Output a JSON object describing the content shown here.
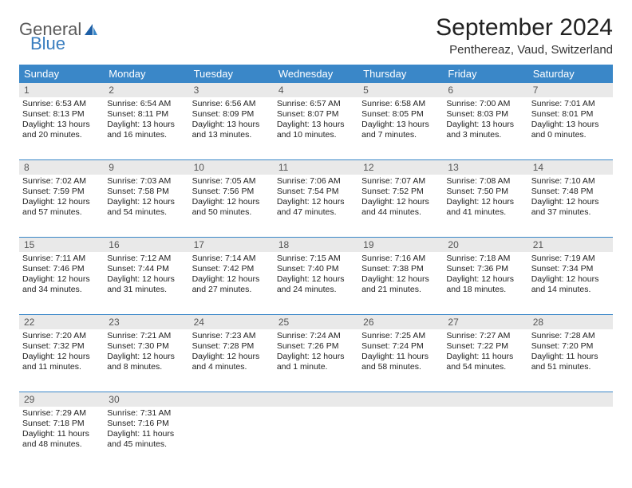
{
  "logo": {
    "text1": "General",
    "text2": "Blue"
  },
  "title": "September 2024",
  "location": "Penthereaz, Vaud, Switzerland",
  "colors": {
    "header_bg": "#3a87c8",
    "header_fg": "#ffffff",
    "daynum_bg": "#e9e9e9",
    "week_border": "#3a87c8",
    "text": "#222222",
    "logo_gray": "#5a5a5a",
    "logo_blue": "#3a7ebf"
  },
  "layout": {
    "cols": 7,
    "rows": 5,
    "cell_font_pt": 10.5
  },
  "weekdays": [
    "Sunday",
    "Monday",
    "Tuesday",
    "Wednesday",
    "Thursday",
    "Friday",
    "Saturday"
  ],
  "weeks": [
    [
      {
        "num": "1",
        "sunrise": "Sunrise: 6:53 AM",
        "sunset": "Sunset: 8:13 PM",
        "daylight1": "Daylight: 13 hours",
        "daylight2": "and 20 minutes."
      },
      {
        "num": "2",
        "sunrise": "Sunrise: 6:54 AM",
        "sunset": "Sunset: 8:11 PM",
        "daylight1": "Daylight: 13 hours",
        "daylight2": "and 16 minutes."
      },
      {
        "num": "3",
        "sunrise": "Sunrise: 6:56 AM",
        "sunset": "Sunset: 8:09 PM",
        "daylight1": "Daylight: 13 hours",
        "daylight2": "and 13 minutes."
      },
      {
        "num": "4",
        "sunrise": "Sunrise: 6:57 AM",
        "sunset": "Sunset: 8:07 PM",
        "daylight1": "Daylight: 13 hours",
        "daylight2": "and 10 minutes."
      },
      {
        "num": "5",
        "sunrise": "Sunrise: 6:58 AM",
        "sunset": "Sunset: 8:05 PM",
        "daylight1": "Daylight: 13 hours",
        "daylight2": "and 7 minutes."
      },
      {
        "num": "6",
        "sunrise": "Sunrise: 7:00 AM",
        "sunset": "Sunset: 8:03 PM",
        "daylight1": "Daylight: 13 hours",
        "daylight2": "and 3 minutes."
      },
      {
        "num": "7",
        "sunrise": "Sunrise: 7:01 AM",
        "sunset": "Sunset: 8:01 PM",
        "daylight1": "Daylight: 13 hours",
        "daylight2": "and 0 minutes."
      }
    ],
    [
      {
        "num": "8",
        "sunrise": "Sunrise: 7:02 AM",
        "sunset": "Sunset: 7:59 PM",
        "daylight1": "Daylight: 12 hours",
        "daylight2": "and 57 minutes."
      },
      {
        "num": "9",
        "sunrise": "Sunrise: 7:03 AM",
        "sunset": "Sunset: 7:58 PM",
        "daylight1": "Daylight: 12 hours",
        "daylight2": "and 54 minutes."
      },
      {
        "num": "10",
        "sunrise": "Sunrise: 7:05 AM",
        "sunset": "Sunset: 7:56 PM",
        "daylight1": "Daylight: 12 hours",
        "daylight2": "and 50 minutes."
      },
      {
        "num": "11",
        "sunrise": "Sunrise: 7:06 AM",
        "sunset": "Sunset: 7:54 PM",
        "daylight1": "Daylight: 12 hours",
        "daylight2": "and 47 minutes."
      },
      {
        "num": "12",
        "sunrise": "Sunrise: 7:07 AM",
        "sunset": "Sunset: 7:52 PM",
        "daylight1": "Daylight: 12 hours",
        "daylight2": "and 44 minutes."
      },
      {
        "num": "13",
        "sunrise": "Sunrise: 7:08 AM",
        "sunset": "Sunset: 7:50 PM",
        "daylight1": "Daylight: 12 hours",
        "daylight2": "and 41 minutes."
      },
      {
        "num": "14",
        "sunrise": "Sunrise: 7:10 AM",
        "sunset": "Sunset: 7:48 PM",
        "daylight1": "Daylight: 12 hours",
        "daylight2": "and 37 minutes."
      }
    ],
    [
      {
        "num": "15",
        "sunrise": "Sunrise: 7:11 AM",
        "sunset": "Sunset: 7:46 PM",
        "daylight1": "Daylight: 12 hours",
        "daylight2": "and 34 minutes."
      },
      {
        "num": "16",
        "sunrise": "Sunrise: 7:12 AM",
        "sunset": "Sunset: 7:44 PM",
        "daylight1": "Daylight: 12 hours",
        "daylight2": "and 31 minutes."
      },
      {
        "num": "17",
        "sunrise": "Sunrise: 7:14 AM",
        "sunset": "Sunset: 7:42 PM",
        "daylight1": "Daylight: 12 hours",
        "daylight2": "and 27 minutes."
      },
      {
        "num": "18",
        "sunrise": "Sunrise: 7:15 AM",
        "sunset": "Sunset: 7:40 PM",
        "daylight1": "Daylight: 12 hours",
        "daylight2": "and 24 minutes."
      },
      {
        "num": "19",
        "sunrise": "Sunrise: 7:16 AM",
        "sunset": "Sunset: 7:38 PM",
        "daylight1": "Daylight: 12 hours",
        "daylight2": "and 21 minutes."
      },
      {
        "num": "20",
        "sunrise": "Sunrise: 7:18 AM",
        "sunset": "Sunset: 7:36 PM",
        "daylight1": "Daylight: 12 hours",
        "daylight2": "and 18 minutes."
      },
      {
        "num": "21",
        "sunrise": "Sunrise: 7:19 AM",
        "sunset": "Sunset: 7:34 PM",
        "daylight1": "Daylight: 12 hours",
        "daylight2": "and 14 minutes."
      }
    ],
    [
      {
        "num": "22",
        "sunrise": "Sunrise: 7:20 AM",
        "sunset": "Sunset: 7:32 PM",
        "daylight1": "Daylight: 12 hours",
        "daylight2": "and 11 minutes."
      },
      {
        "num": "23",
        "sunrise": "Sunrise: 7:21 AM",
        "sunset": "Sunset: 7:30 PM",
        "daylight1": "Daylight: 12 hours",
        "daylight2": "and 8 minutes."
      },
      {
        "num": "24",
        "sunrise": "Sunrise: 7:23 AM",
        "sunset": "Sunset: 7:28 PM",
        "daylight1": "Daylight: 12 hours",
        "daylight2": "and 4 minutes."
      },
      {
        "num": "25",
        "sunrise": "Sunrise: 7:24 AM",
        "sunset": "Sunset: 7:26 PM",
        "daylight1": "Daylight: 12 hours",
        "daylight2": "and 1 minute."
      },
      {
        "num": "26",
        "sunrise": "Sunrise: 7:25 AM",
        "sunset": "Sunset: 7:24 PM",
        "daylight1": "Daylight: 11 hours",
        "daylight2": "and 58 minutes."
      },
      {
        "num": "27",
        "sunrise": "Sunrise: 7:27 AM",
        "sunset": "Sunset: 7:22 PM",
        "daylight1": "Daylight: 11 hours",
        "daylight2": "and 54 minutes."
      },
      {
        "num": "28",
        "sunrise": "Sunrise: 7:28 AM",
        "sunset": "Sunset: 7:20 PM",
        "daylight1": "Daylight: 11 hours",
        "daylight2": "and 51 minutes."
      }
    ],
    [
      {
        "num": "29",
        "sunrise": "Sunrise: 7:29 AM",
        "sunset": "Sunset: 7:18 PM",
        "daylight1": "Daylight: 11 hours",
        "daylight2": "and 48 minutes."
      },
      {
        "num": "30",
        "sunrise": "Sunrise: 7:31 AM",
        "sunset": "Sunset: 7:16 PM",
        "daylight1": "Daylight: 11 hours",
        "daylight2": "and 45 minutes."
      },
      {
        "num": "",
        "sunrise": "",
        "sunset": "",
        "daylight1": "",
        "daylight2": ""
      },
      {
        "num": "",
        "sunrise": "",
        "sunset": "",
        "daylight1": "",
        "daylight2": ""
      },
      {
        "num": "",
        "sunrise": "",
        "sunset": "",
        "daylight1": "",
        "daylight2": ""
      },
      {
        "num": "",
        "sunrise": "",
        "sunset": "",
        "daylight1": "",
        "daylight2": ""
      },
      {
        "num": "",
        "sunrise": "",
        "sunset": "",
        "daylight1": "",
        "daylight2": ""
      }
    ]
  ]
}
